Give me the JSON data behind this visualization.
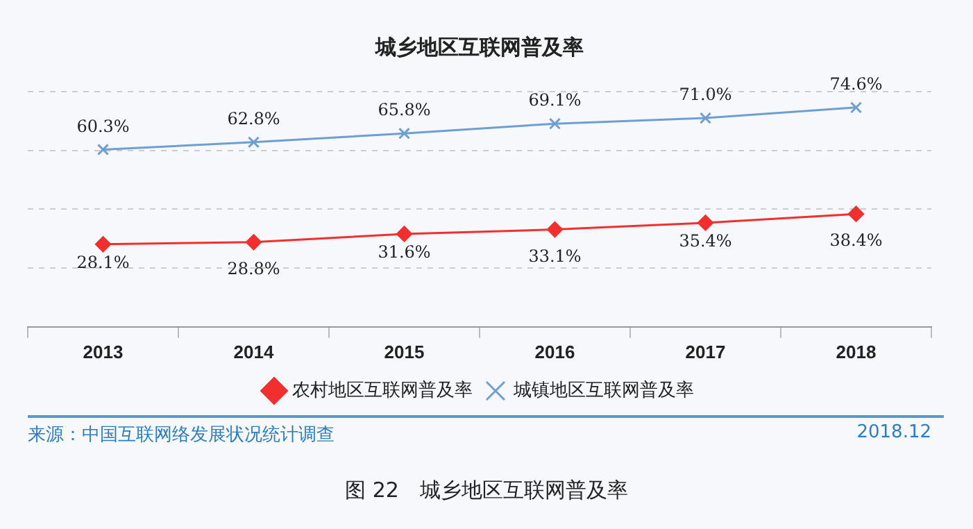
{
  "chart_data": {
    "type": "line",
    "title": "城乡地区互联网普及率",
    "categories": [
      "2013",
      "2014",
      "2015",
      "2016",
      "2017",
      "2018"
    ],
    "series": [
      {
        "name": "农村地区互联网普及率",
        "color": "#f22f2f",
        "marker": "diamond",
        "values": [
          28.1,
          28.8,
          31.6,
          33.1,
          35.4,
          38.4
        ],
        "value_labels": [
          "28.1%",
          "28.8%",
          "31.6%",
          "33.1%",
          "35.4%",
          "38.4%"
        ]
      },
      {
        "name": "城镇地区互联网普及率",
        "color": "#6d9fd5",
        "marker": "cross",
        "values": [
          60.3,
          62.8,
          65.8,
          69.1,
          71.0,
          74.6
        ],
        "value_labels": [
          "60.3%",
          "62.8%",
          "65.8%",
          "69.1%",
          "71.0%",
          "74.6%"
        ]
      }
    ],
    "ylim": [
      0,
      80
    ],
    "yticks": [
      {
        "value": 0,
        "label": null
      },
      {
        "value": 20,
        "label": null
      },
      {
        "value": 40,
        "label": null
      },
      {
        "value": 60,
        "label": null
      },
      {
        "value": 80,
        "label": null
      }
    ],
    "grid": "y",
    "tick_labels": "x",
    "legend": "bottom",
    "line_style": "solid",
    "annotations": [
      "来源：中国互联网络发展状况统计调查",
      "2018.12",
      "图 22　城乡地区互联网普及率"
    ]
  }
}
